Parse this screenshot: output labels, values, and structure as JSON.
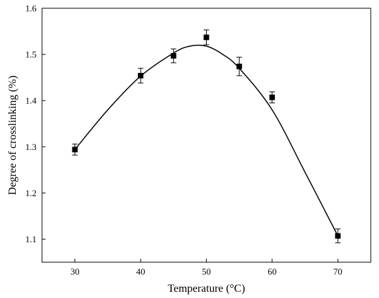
{
  "chart_data": {
    "type": "scatter",
    "title": "",
    "xlabel": "Temperature (°C)",
    "ylabel": "Degree of crosslinking (%)",
    "xlim": [
      25,
      75
    ],
    "ylim": [
      1.05,
      1.6
    ],
    "x_ticks": [
      30,
      40,
      50,
      60,
      70
    ],
    "x_tick_labels": [
      "30",
      "40",
      "50",
      "60",
      "70"
    ],
    "y_ticks": [
      1.1,
      1.2,
      1.3,
      1.4,
      1.5,
      1.6
    ],
    "y_tick_labels": [
      "1.1",
      "1.2",
      "1.3",
      "1.4",
      "1.5",
      "1.6"
    ],
    "grid": false,
    "legend": "none",
    "series": [
      {
        "x": [
          30,
          40,
          45,
          50,
          55,
          60,
          70
        ],
        "y": [
          1.294,
          1.454,
          1.497,
          1.537,
          1.474,
          1.407,
          1.107
        ],
        "error": [
          0.012,
          0.016,
          0.015,
          0.016,
          0.02,
          0.012,
          0.015
        ],
        "marker": "square",
        "color": "#000000"
      }
    ],
    "fit_curve": {
      "x": [
        30,
        35,
        40,
        45,
        47.5,
        50,
        52.5,
        55,
        60,
        65,
        70
      ],
      "y": [
        1.294,
        1.38,
        1.453,
        1.503,
        1.518,
        1.518,
        1.5,
        1.47,
        1.38,
        1.245,
        1.107
      ],
      "color": "#000000"
    }
  }
}
